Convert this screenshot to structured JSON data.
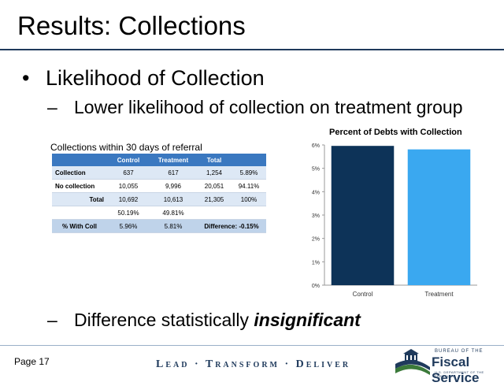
{
  "slide": {
    "title": "Results: Collections",
    "bullet1": "Likelihood of Collection",
    "bullet_symbol": "•",
    "dash_symbol": "–",
    "sub1": "Lower likelihood of collection on treatment group",
    "sub2_prefix": "Difference statistically ",
    "sub2_emphasis": "insignificant"
  },
  "table": {
    "title": "Collections within 30 days of referral",
    "headers": [
      "",
      "Control",
      "Treatment",
      "Total",
      ""
    ],
    "rows": [
      [
        "Collection",
        "637",
        "617",
        "1,254",
        "5.89%"
      ],
      [
        "No collection",
        "10,055",
        "9,996",
        "20,051",
        "94.11%"
      ],
      [
        "Total",
        "10,692",
        "10,613",
        "21,305",
        "100%"
      ],
      [
        "",
        "50.19%",
        "49.81%",
        "",
        ""
      ]
    ],
    "footer": [
      "% With Coll",
      "5.96%",
      "5.81%",
      "Difference: -0.15%"
    ]
  },
  "chart_data": {
    "type": "bar",
    "title": "Percent of Debts with Collection",
    "categories": [
      "Control",
      "Treatment"
    ],
    "values": [
      5.96,
      5.81
    ],
    "colors": [
      "#0d3358",
      "#3aa8f0"
    ],
    "ylim": [
      0,
      6
    ],
    "yticks": [
      "0%",
      "1%",
      "2%",
      "3%",
      "4%",
      "5%",
      "6%"
    ],
    "xlabel": "",
    "ylabel": "",
    "grid": false
  },
  "footer": {
    "page": "Page 17",
    "tagline": "Lead · Transform · Deliver",
    "logo": {
      "bureau": "BUREAU OF THE",
      "name": "Fiscal Service",
      "dept": "U.S. DEPARTMENT OF THE TREASURY"
    }
  },
  "colors": {
    "accent_navy": "#1f3a5c",
    "table_header": "#3a78c0"
  }
}
